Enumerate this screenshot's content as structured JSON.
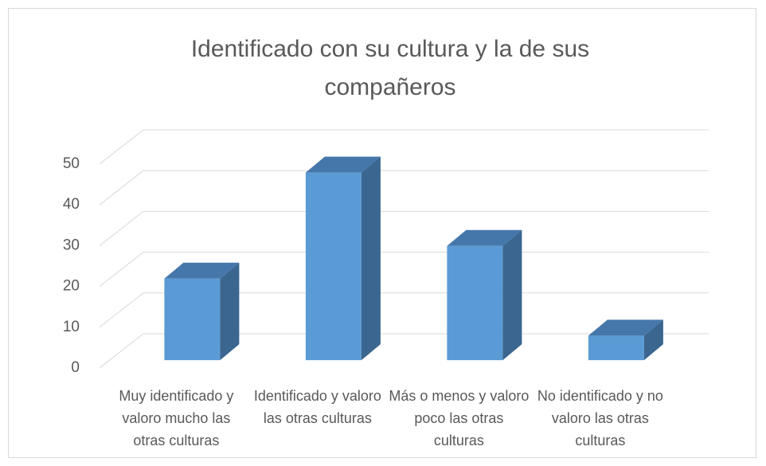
{
  "chart_data": {
    "type": "bar3d",
    "title": "Identificado  con su cultura y la de sus compañeros",
    "categories": [
      "Muy identificado y valoro mucho las otras culturas",
      "Identificado y valoro las otras culturas",
      "Más o menos y valoro poco las otras culturas",
      "No identificado y no valoro las otras culturas"
    ],
    "values": [
      20,
      46,
      28,
      6
    ],
    "color": "#5b9bd5",
    "ylim": [
      0,
      50
    ],
    "yticks": [
      0,
      10,
      20,
      30,
      40,
      50
    ],
    "grid": true
  }
}
